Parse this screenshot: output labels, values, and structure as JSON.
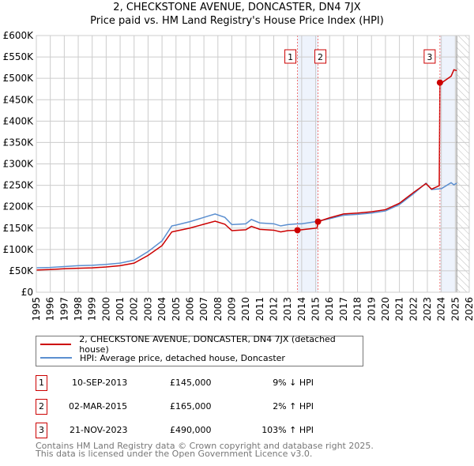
{
  "chart_data": {
    "type": "line",
    "title": "2, CHECKSTONE AVENUE, DONCASTER, DN4 7JX",
    "subtitle": "Price paid vs. HM Land Registry's House Price Index (HPI)",
    "xlim": [
      1995,
      2026
    ],
    "ylim": [
      0,
      600000
    ],
    "y_ticks": [
      "£0",
      "£50K",
      "£100K",
      "£150K",
      "£200K",
      "£250K",
      "£300K",
      "£350K",
      "£400K",
      "£450K",
      "£500K",
      "£550K",
      "£600K"
    ],
    "x_ticks": [
      "1995",
      "1996",
      "1997",
      "1998",
      "1999",
      "2000",
      "2001",
      "2002",
      "2003",
      "2004",
      "2005",
      "2006",
      "2007",
      "2008",
      "2009",
      "2010",
      "2011",
      "2012",
      "2013",
      "2014",
      "2015",
      "2016",
      "2017",
      "2018",
      "2019",
      "2020",
      "2021",
      "2022",
      "2023",
      "2024",
      "2025",
      "2026"
    ],
    "grid": true,
    "series": [
      {
        "name": "2, CHECKSTONE AVENUE, DONCASTER, DN4 7JX (detached house)",
        "color": "#cc0000",
        "x": [
          1995,
          1996,
          1997,
          1998,
          1999,
          2000,
          2001,
          2002,
          2003,
          2004,
          2004.7,
          2005,
          2006,
          2007,
          2007.8,
          2008.5,
          2009,
          2010,
          2010.4,
          2011,
          2012,
          2012.5,
          2013,
          2013.7,
          2014,
          2015.1,
          2015.17,
          2016,
          2017,
          2018,
          2019,
          2020,
          2021,
          2022,
          2022.9,
          2023.3,
          2023.85,
          2023.9,
          2024,
          2024.7,
          2024.9,
          2025.1
        ],
        "y": [
          52000,
          53000,
          55000,
          56000,
          57000,
          59000,
          62000,
          68000,
          86000,
          109000,
          141000,
          143000,
          150000,
          159000,
          166000,
          159000,
          144000,
          146000,
          154000,
          147000,
          145000,
          141000,
          144000,
          145000,
          146000,
          150000,
          165000,
          174000,
          183000,
          185000,
          188000,
          193000,
          208000,
          233000,
          254000,
          241000,
          249000,
          490000,
          489000,
          505000,
          520000,
          518000
        ]
      },
      {
        "name": "HPI: Average price, detached house, Doncaster",
        "color": "#5b8fd0",
        "x": [
          1995,
          1996,
          1997,
          1998,
          1999,
          2000,
          2001,
          2002,
          2003,
          2004,
          2004.7,
          2005,
          2006,
          2007,
          2007.8,
          2008.5,
          2009,
          2010,
          2010.4,
          2011,
          2012,
          2012.5,
          2013,
          2013.7,
          2014,
          2015,
          2016,
          2017,
          2018,
          2019,
          2020,
          2021,
          2022,
          2022.9,
          2023.3,
          2024,
          2024.7,
          2024.9,
          2025.1
        ],
        "y": [
          57000,
          58000,
          60000,
          62000,
          63000,
          65000,
          68000,
          75000,
          95000,
          120000,
          155000,
          157000,
          165000,
          175000,
          183000,
          175000,
          158000,
          160000,
          170000,
          162000,
          160000,
          155000,
          158000,
          160000,
          160000,
          165000,
          172000,
          180000,
          182000,
          185000,
          190000,
          205000,
          230000,
          255000,
          240000,
          242000,
          256000,
          251000,
          255000
        ]
      }
    ],
    "sales": [
      {
        "label": "1",
        "x": 2013.7,
        "price": 145000,
        "date": "10-SEP-2013",
        "price_text": "£145,000",
        "hpi": "9% ↓ HPI"
      },
      {
        "label": "2",
        "x": 2015.17,
        "price": 165000,
        "date": "02-MAR-2015",
        "price_text": "£165,000",
        "hpi": "2% ↑ HPI"
      },
      {
        "label": "3",
        "x": 2023.9,
        "price": 490000,
        "date": "21-NOV-2023",
        "price_text": "£490,000",
        "hpi": "103% ↑ HPI"
      }
    ],
    "shaded_ranges": [
      [
        2013.7,
        2015.17
      ],
      [
        2023.9,
        2025.0
      ]
    ],
    "hatched_from": 2025.1
  },
  "footer": {
    "line1": "Contains HM Land Registry data © Crown copyright and database right 2025.",
    "line2": "This data is licensed under the Open Government Licence v3.0."
  }
}
